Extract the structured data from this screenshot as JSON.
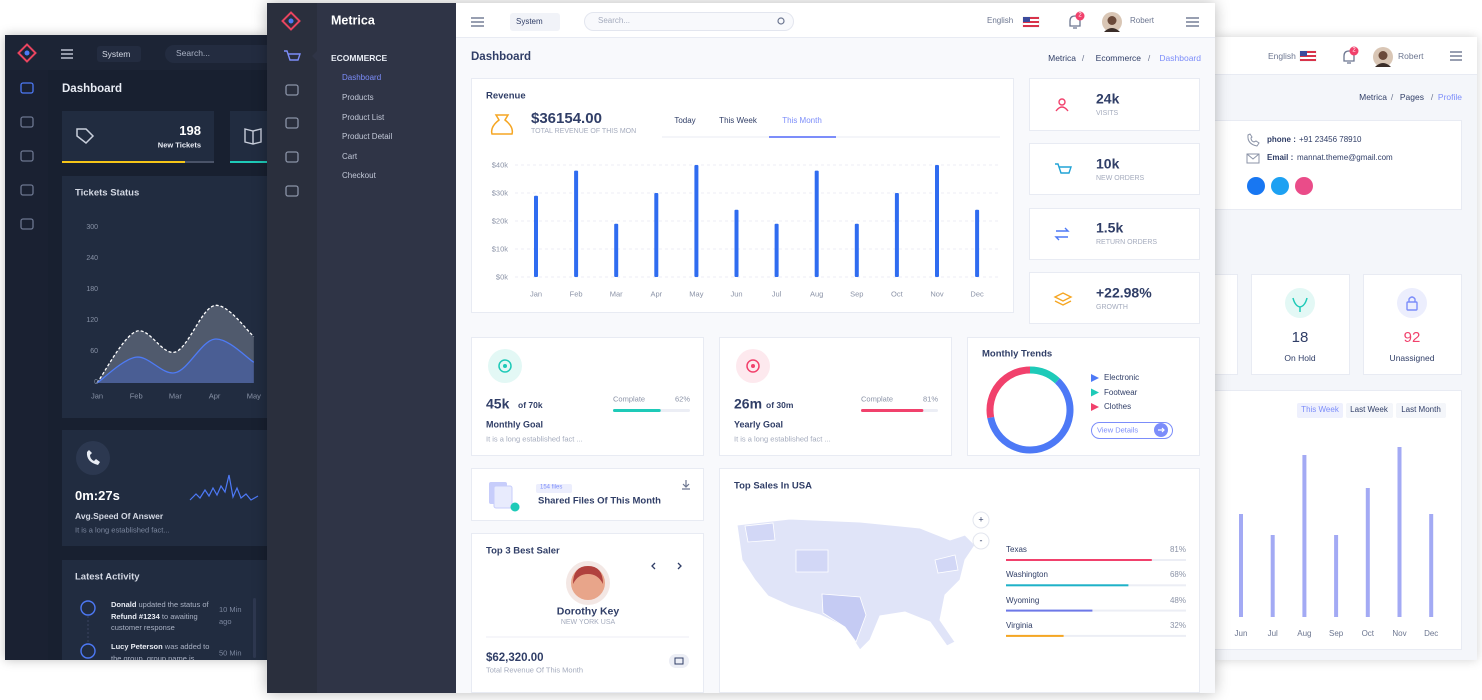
{
  "left_panel": {
    "topbar": {
      "menu_button": "System",
      "search": "Search..."
    },
    "page_title": "Dashboard",
    "tickets": {
      "value": "198",
      "label": "New Tickets"
    },
    "tickets_status": {
      "title": "Tickets Status",
      "chart": {
        "type": "area",
        "categories": [
          "Jan",
          "Feb",
          "Mar",
          "Apr",
          "May"
        ],
        "series": [
          {
            "color": "#ffffff",
            "values": [
              0,
              100,
              60,
              150,
              90
            ]
          },
          {
            "color": "#4e7bf5",
            "values": [
              0,
              50,
              20,
              85,
              40
            ]
          }
        ],
        "ylim": [
          0,
          300
        ],
        "yticks": [
          0,
          60,
          120,
          180,
          240,
          300
        ]
      }
    },
    "speed": {
      "value": "0m:27s",
      "title": "Avg.Speed Of Answer",
      "text": "It is a long established fact..."
    },
    "activity": {
      "title": "Latest Activity",
      "items": [
        {
          "actor": "Donald",
          "text": "updated the status of",
          "ref": "Refund #1234",
          "text2": "to awaiting customer response",
          "time": "10 Min ago"
        },
        {
          "actor": "Lucy Peterson",
          "text": "was added to the group, group name is",
          "time": "50 Min"
        }
      ]
    }
  },
  "main_panel": {
    "brand": "Metrica",
    "topbar": {
      "menu_button": "System",
      "search": "Search...",
      "language": "English",
      "notifications": "2",
      "user": "Robert"
    },
    "sidebar": {
      "section": "ECOMMERCE",
      "items": [
        "Dashboard",
        "Products",
        "Product List",
        "Product Detail",
        "Cart",
        "Checkout"
      ]
    },
    "page_title": "Dashboard",
    "breadcrumb": [
      "Metrica",
      "Ecommerce",
      "Dashboard"
    ],
    "breadcrumb_separator": "/",
    "revenue": {
      "title": "Revenue",
      "amount": "$36154.00",
      "amount_label": "TOTAL REVENUE OF THIS MON",
      "tabs": [
        "Today",
        "This Week",
        "This Month"
      ],
      "chart": {
        "type": "bar",
        "categories": [
          "Jan",
          "Feb",
          "Mar",
          "Apr",
          "May",
          "Jun",
          "Jul",
          "Aug",
          "Sep",
          "Oct",
          "Nov",
          "Dec"
        ],
        "values": [
          29,
          38,
          19,
          30,
          40,
          24,
          19,
          38,
          19,
          30,
          40,
          24
        ],
        "color": "#2f6cf0",
        "ylim": [
          0,
          40
        ],
        "yticks": [
          {
            "value": 0,
            "label": "$0k"
          },
          {
            "value": 10,
            "label": "$10k"
          },
          {
            "value": 20,
            "label": "$20k"
          },
          {
            "value": 30,
            "label": "$30k"
          },
          {
            "value": 40,
            "label": "$40k"
          }
        ],
        "grid": true
      }
    },
    "stats": [
      {
        "value": "24k",
        "label": "VISITS"
      },
      {
        "value": "10k",
        "label": "NEW ORDERS"
      },
      {
        "value": "1.5k",
        "label": "RETURN ORDERS"
      },
      {
        "value": "+22.98%",
        "label": "GROWTH"
      }
    ],
    "goals": [
      {
        "value": "45k",
        "of": "of 70k",
        "title": "Monthly Goal",
        "text": "It is a long established fact ...",
        "progress_label": "Complate",
        "progress": 62,
        "progress_value_label": "62%",
        "color": "#1ecab8"
      },
      {
        "value": "26m",
        "of": "of 30m",
        "title": "Yearly Goal",
        "text": "It is a long established fact ...",
        "progress_label": "Complate",
        "progress": 81,
        "progress_value_label": "81%",
        "color": "#f1416c"
      }
    ],
    "trends": {
      "title": "Monthly Trends",
      "button": "View Details",
      "chart": {
        "type": "doughnut",
        "series": [
          {
            "name": "Electronic",
            "color": "#4d79f6",
            "values": [
              60
            ]
          },
          {
            "name": "Footwear",
            "color": "#1ecab8",
            "values": [
              12
            ]
          },
          {
            "name": "Clothes",
            "color": "#f1416c",
            "values": [
              28
            ]
          }
        ]
      }
    },
    "files": {
      "badge": "154 files",
      "title": "Shared Files Of This Month"
    },
    "best_saler": {
      "title": "Top 3 Best Saler",
      "name": "Dorothy Key",
      "location": "NEW YORK USA",
      "amount": "$62,320.00",
      "amount_label": "Total Revenue Of This Month"
    },
    "top_sales": {
      "title": "Top Sales In USA",
      "zoom_in": "+",
      "zoom_out": "-",
      "states": [
        {
          "name": "Texas",
          "value": 81,
          "value_label": "81%",
          "color": "#f1416c"
        },
        {
          "name": "Washington",
          "value": 68,
          "value_label": "68%",
          "color": "#1eb2c8"
        },
        {
          "name": "Wyoming",
          "value": 48,
          "value_label": "48%",
          "color": "#6d78e8"
        },
        {
          "name": "Virginia",
          "value": 32,
          "value_label": "32%",
          "color": "#f5a623"
        }
      ]
    }
  },
  "right_panel": {
    "topbar": {
      "language": "English",
      "notifications": "2",
      "user": "Robert"
    },
    "breadcrumb": [
      "Metrica",
      "Pages",
      "Profile"
    ],
    "breadcrumb_separator": "/",
    "contact": {
      "phone_label": "phone :",
      "phone": "+91 23456 78910",
      "email_label": "Email :",
      "email": "mannat.theme@gmail.com"
    },
    "counters": [
      {
        "value": "18",
        "label": "On Hold"
      },
      {
        "value": "92",
        "label": "Unassigned"
      }
    ],
    "chart": {
      "type": "bar",
      "tabs": [
        "This Week",
        "Last Week",
        "Last Month"
      ],
      "categories": [
        "Jun",
        "Jul",
        "Aug",
        "Sep",
        "Oct",
        "Nov",
        "Dec"
      ],
      "values": [
        103,
        82,
        162,
        82,
        129,
        170,
        103
      ],
      "color": "#a3aaf4",
      "ylim": [
        0,
        200
      ]
    }
  }
}
